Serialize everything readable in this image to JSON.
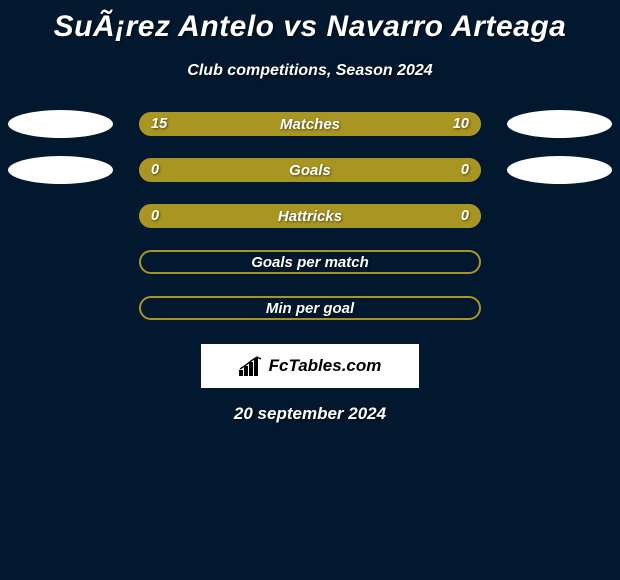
{
  "title": "SuÃ¡rez Antelo vs Navarro Arteaga",
  "subtitle": "Club competitions, Season 2024",
  "date_text": "20 september 2024",
  "logo_text": "FcTables.com",
  "colors": {
    "background": "#02182e",
    "bar_base": "#a89522",
    "bar_fill_left": "#a89522",
    "bar_fill_right": "#a89522",
    "bar_border_only": "#a89522",
    "badge": "#ffffff",
    "text": "#ffffff"
  },
  "rows": [
    {
      "label": "Matches",
      "left_value": "15",
      "right_value": "10",
      "left_pct": 60,
      "right_pct": 40,
      "show_badges": true
    },
    {
      "label": "Goals",
      "left_value": "0",
      "right_value": "0",
      "left_pct": 50,
      "right_pct": 50,
      "show_badges": true
    },
    {
      "label": "Hattricks",
      "left_value": "0",
      "right_value": "0",
      "left_pct": 50,
      "right_pct": 50,
      "show_badges": false
    },
    {
      "label": "Goals per match",
      "left_value": "",
      "right_value": "",
      "left_pct": 0,
      "right_pct": 0,
      "show_badges": false,
      "hollow": true
    },
    {
      "label": "Min per goal",
      "left_value": "",
      "right_value": "",
      "left_pct": 0,
      "right_pct": 0,
      "show_badges": false,
      "hollow": true
    }
  ]
}
